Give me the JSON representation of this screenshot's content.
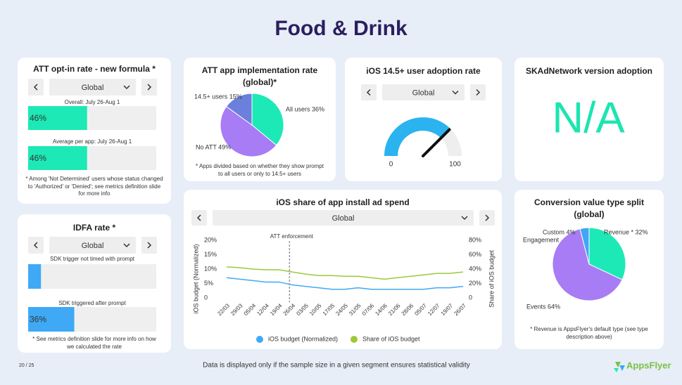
{
  "title": "Food & Drink",
  "chart_data": [
    {
      "type": "bar",
      "title": "ATT opt-in rate - new formula *",
      "filter": "Global",
      "categories": [
        "Overall: July 26-Aug 1",
        "Average per app: July 26-Aug 1"
      ],
      "values": [
        46,
        46
      ],
      "value_labels": [
        "46%",
        "46%"
      ],
      "color": "#1de9b6",
      "xlim": [
        0,
        100
      ],
      "note": "* Among 'Not Determined' users whose status changed to 'Authorized' or 'Denied'; see metrics definition slide for more info"
    },
    {
      "type": "bar",
      "title": "IDFA rate *",
      "filter": "Global",
      "categories": [
        "SDK trigger not timed with prompt",
        "SDK triggered after prompt"
      ],
      "values": [
        10,
        36
      ],
      "value_labels": [
        null,
        "36%"
      ],
      "color": "#3fa9f5",
      "xlim": [
        0,
        100
      ],
      "note": "* See metrics definition slide for more info on how we calculated the rate"
    },
    {
      "type": "pie",
      "title": "ATT app implementation rate (global)*",
      "values": [
        36,
        49,
        15
      ],
      "value_labels": [
        "All users 36%",
        "No ATT 49%",
        "14.5+ users 15%"
      ],
      "colors": [
        "#1de9b6",
        "#a77cf5",
        "#6b7fdc"
      ],
      "note": "* Apps divided based on whether they show prompt to all users or only to 14.5+ users"
    },
    {
      "type": "gauge",
      "title": "iOS 14.5+ user adoption rate",
      "filter": "Global",
      "value": 75,
      "ylim": [
        0,
        100
      ],
      "yticks": [
        0,
        100
      ],
      "color": "#2bb3f0",
      "track_color": "#eeeeee"
    },
    {
      "type": "line",
      "title": "iOS share of app install ad spend",
      "filter": "Global",
      "x": [
        "22/03",
        "29/03",
        "05/04",
        "12/04",
        "19/04",
        "26/04",
        "03/05",
        "10/05",
        "17/05",
        "24/05",
        "31/05",
        "07/06",
        "14/06",
        "21/06",
        "28/06",
        "05/07",
        "12/07",
        "19/07",
        "26/07"
      ],
      "series": [
        {
          "name": "iOS budget (Normalized)",
          "color": "#3fa9f5",
          "values": [
            7,
            6.5,
            6,
            5.5,
            5.5,
            4.5,
            4,
            3.5,
            3,
            3,
            3.5,
            3,
            3,
            3,
            3,
            3,
            3.5,
            3.5,
            4
          ]
        },
        {
          "name": "Share of iOS budget",
          "color": "#9cc93a",
          "axis": "y2",
          "values": [
            43,
            42,
            40,
            39,
            39,
            36,
            33,
            31,
            31,
            30,
            30,
            28,
            26,
            28,
            30,
            32,
            34,
            34,
            36
          ]
        }
      ],
      "ylabel": "iOS budget (Normalized)",
      "y2label": "Share of iOS budget",
      "ylim": [
        0,
        20
      ],
      "yticks": [
        0,
        {
          "value": 5,
          "label": "5%"
        },
        {
          "value": 10,
          "label": "10%"
        },
        {
          "value": 15,
          "label": "15%"
        },
        {
          "value": 20,
          "label": "20%"
        }
      ],
      "y2lim": [
        0,
        80
      ],
      "y2ticks": [
        0,
        {
          "value": 20,
          "label": "20%"
        },
        {
          "value": 40,
          "label": "40%"
        },
        {
          "value": 60,
          "label": "60%"
        },
        {
          "value": 80,
          "label": "80%"
        }
      ],
      "annotation": {
        "text": "ATT enforcement",
        "x": "26/04"
      },
      "grid": false
    },
    {
      "type": "pie",
      "title": "Conversion value type split (global)",
      "values": [
        32,
        64,
        0,
        4
      ],
      "value_labels": [
        "Revenue * 32%",
        "Events 64%",
        "Engagement",
        "Custom 4%"
      ],
      "colors": [
        "#1de9b6",
        "#a77cf5",
        "#5c6bc0",
        "#42a5f5"
      ],
      "note": "* Revenue is AppsFlyer's default type (see type description above)"
    }
  ],
  "skadnetwork": {
    "title": "SKAdNetwork version adoption",
    "value": "N/A"
  },
  "footer": {
    "page": "20 / 25",
    "note": "Data is displayed only if the sample size in a given segment ensures statistical validity",
    "logo": "AppsFlyer"
  }
}
